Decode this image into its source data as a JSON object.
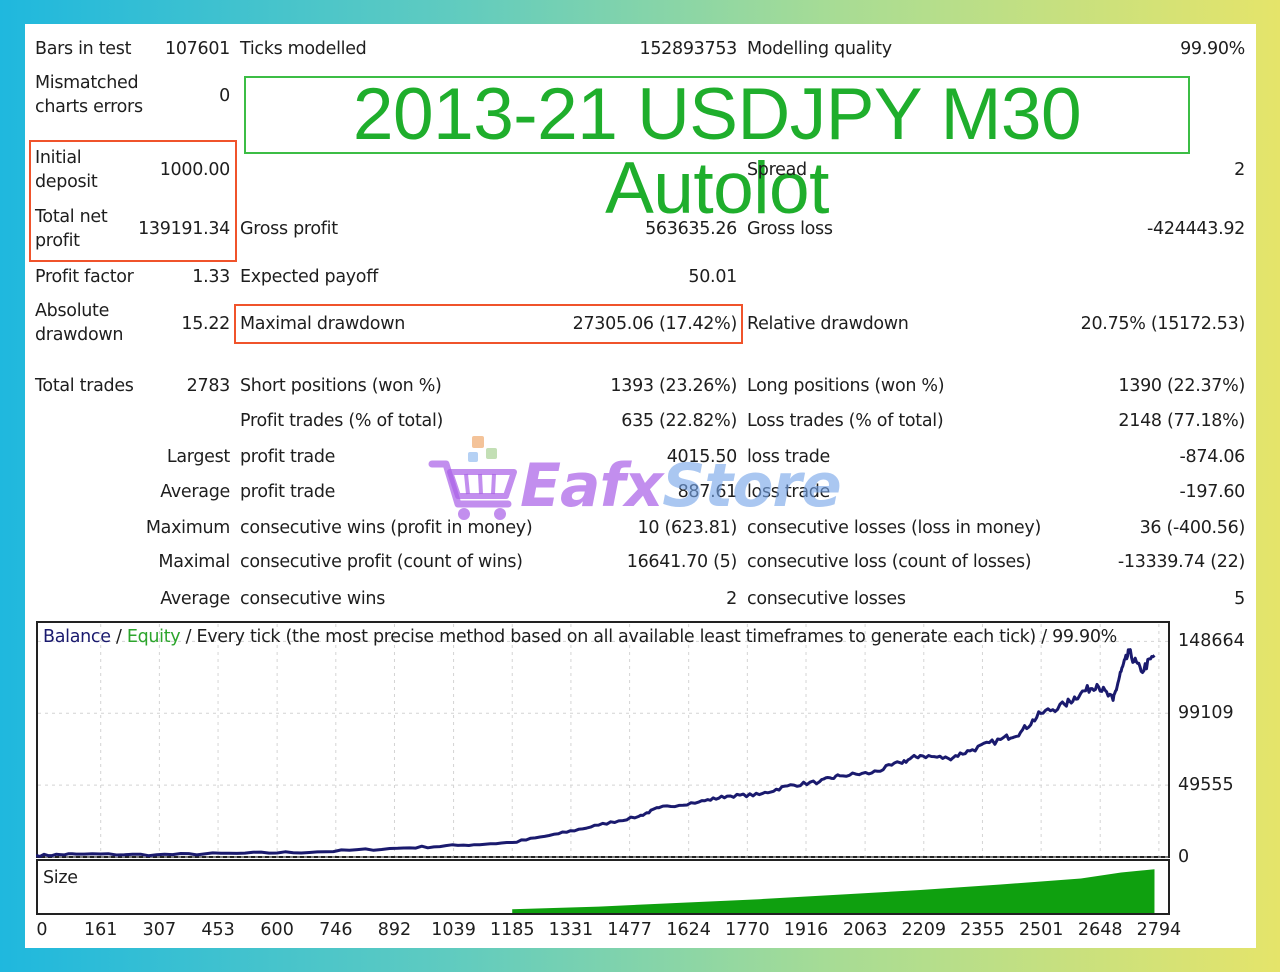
{
  "colors": {
    "balance": "#1a1a6e",
    "equity": "#2ca52c",
    "size": "#0fa00f",
    "highlight": "#f0532b",
    "banner": "#1fae2c",
    "watermark_a": "#ab62e8",
    "watermark_b": "#76a5e8"
  },
  "report": {
    "bars_in_test_label": "Bars in test",
    "bars_in_test": "107601",
    "ticks_modelled_label": "Ticks modelled",
    "ticks_modelled": "152893753",
    "modelling_quality_label": "Modelling quality",
    "modelling_quality": "99.90%",
    "mismatched_label_1": "Mismatched",
    "mismatched_label_2": "charts errors",
    "mismatched": "0",
    "initial_deposit_label_1": "Initial",
    "initial_deposit_label_2": "deposit",
    "initial_deposit": "1000.00",
    "spread_label": "Spread",
    "spread": "2",
    "total_net_profit_label_1": "Total net",
    "total_net_profit_label_2": "profit",
    "total_net_profit": "139191.34",
    "gross_profit_label": "Gross profit",
    "gross_profit": "563635.26",
    "gross_loss_label": "Gross loss",
    "gross_loss": "-424443.92",
    "profit_factor_label": "Profit factor",
    "profit_factor": "1.33",
    "expected_payoff_label": "Expected payoff",
    "expected_payoff": "50.01",
    "absolute_drawdown_label_1": "Absolute",
    "absolute_drawdown_label_2": "drawdown",
    "absolute_drawdown": "15.22",
    "maximal_drawdown_label": "Maximal drawdown",
    "maximal_drawdown": "27305.06 (17.42%)",
    "relative_drawdown_label": "Relative drawdown",
    "relative_drawdown": "20.75% (15172.53)",
    "total_trades_label": "Total trades",
    "total_trades": "2783",
    "short_positions_label": "Short positions (won %)",
    "short_positions": "1393 (23.26%)",
    "long_positions_label": "Long positions (won %)",
    "long_positions": "1390 (22.37%)",
    "profit_trades_label": "Profit trades (% of total)",
    "profit_trades": "635 (22.82%)",
    "loss_trades_label": "Loss trades (% of total)",
    "loss_trades": "2148 (77.18%)",
    "largest_label": "Largest",
    "largest_profit_label": "profit trade",
    "largest_profit": "4015.50",
    "largest_loss_label": "loss trade",
    "largest_loss": "-874.06",
    "average_label": "Average",
    "average_profit_label": "profit trade",
    "average_profit": "887.61",
    "average_loss_label": "loss trade",
    "average_loss": "-197.60",
    "maximum_label": "Maximum",
    "max_cons_wins_label": "consecutive wins (profit in money)",
    "max_cons_wins": "10 (623.81)",
    "max_cons_losses_label": "consecutive losses (loss in money)",
    "max_cons_losses": "36 (-400.56)",
    "maximal_label": "Maximal",
    "maximal_cons_profit_label": "consecutive profit (count of wins)",
    "maximal_cons_profit": "16641.70 (5)",
    "maximal_cons_loss_label": "consecutive loss (count of losses)",
    "maximal_cons_loss": "-13339.74 (22)",
    "avg_cons_label": "Average",
    "avg_cons_wins_label": "consecutive wins",
    "avg_cons_wins": "2",
    "avg_cons_losses_label": "consecutive losses",
    "avg_cons_losses": "5"
  },
  "banner": {
    "title": "2013-21 USDJPY M30 Autolot"
  },
  "watermark": {
    "part_a": "Eafx",
    "part_b": "Store",
    "icon": "shopping-cart-icon"
  },
  "chart": {
    "legend_balance": "Balance",
    "legend_sep_1": " / ",
    "legend_equity": "Equity",
    "legend_rest": " / Every tick (the most precise method based on all available least timeframes to generate each tick) / 99.90%",
    "size_label": "Size",
    "y_ticks": [
      "148664",
      "99109",
      "49555",
      "0"
    ],
    "x_ticks": [
      "0",
      "161",
      "307",
      "453",
      "600",
      "746",
      "892",
      "1039",
      "1185",
      "1331",
      "1477",
      "1624",
      "1770",
      "1916",
      "2063",
      "2209",
      "2355",
      "2501",
      "2648",
      "2794"
    ]
  },
  "chart_data": {
    "type": "line",
    "title": "",
    "xlabel": "",
    "ylabel": "",
    "xlim": [
      0,
      2783
    ],
    "ylim": [
      0,
      148664
    ],
    "grid": true,
    "series": [
      {
        "name": "Balance",
        "x": [
          0,
          100,
          300,
          500,
          700,
          900,
          1050,
          1185,
          1300,
          1400,
          1500,
          1550,
          1650,
          1720,
          1800,
          1870,
          1950,
          2000,
          2080,
          2150,
          2200,
          2270,
          2330,
          2400,
          2450,
          2500,
          2560,
          2600,
          2640,
          2680,
          2700,
          2720,
          2750,
          2783
        ],
        "values": [
          1000,
          2000,
          1500,
          2500,
          3500,
          6000,
          8000,
          10000,
          16000,
          22000,
          28000,
          34000,
          38000,
          42000,
          43000,
          49000,
          52000,
          56000,
          58000,
          65000,
          70000,
          68000,
          74000,
          81000,
          86000,
          99000,
          105000,
          113000,
          119000,
          108000,
          128000,
          141000,
          128000,
          139000
        ]
      }
    ],
    "size_series": {
      "name": "Size",
      "x": [
        1185,
        1400,
        1600,
        1800,
        2000,
        2200,
        2400,
        2600,
        2700,
        2783
      ],
      "values": [
        0.08,
        0.14,
        0.22,
        0.3,
        0.4,
        0.5,
        0.62,
        0.75,
        0.88,
        0.95
      ]
    }
  }
}
